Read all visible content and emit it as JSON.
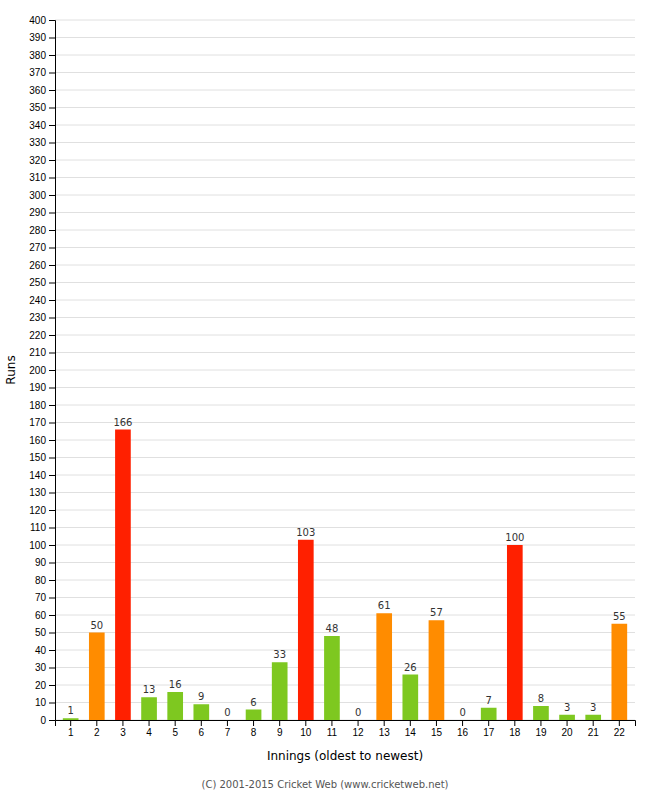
{
  "chart_data": {
    "type": "bar",
    "categories": [
      "1",
      "2",
      "3",
      "4",
      "5",
      "6",
      "7",
      "8",
      "9",
      "10",
      "11",
      "12",
      "13",
      "14",
      "15",
      "16",
      "17",
      "18",
      "19",
      "20",
      "21",
      "22"
    ],
    "values": [
      1,
      50,
      166,
      13,
      16,
      9,
      0,
      6,
      33,
      103,
      48,
      0,
      61,
      26,
      57,
      0,
      7,
      100,
      8,
      3,
      3,
      55
    ],
    "colors": [
      "#7ec820",
      "#ff8c00",
      "#ff2000",
      "#7ec820",
      "#7ec820",
      "#7ec820",
      "#7ec820",
      "#7ec820",
      "#7ec820",
      "#ff2000",
      "#7ec820",
      "#7ec820",
      "#ff8c00",
      "#7ec820",
      "#ff8c00",
      "#7ec820",
      "#7ec820",
      "#ff2000",
      "#7ec820",
      "#7ec820",
      "#7ec820",
      "#ff8c00"
    ],
    "xlabel": "Innings (oldest to newest)",
    "ylabel": "Runs",
    "ylim": [
      0,
      400
    ],
    "yticks": [
      0,
      10,
      20,
      30,
      40,
      50,
      60,
      70,
      80,
      90,
      100,
      110,
      120,
      130,
      140,
      150,
      160,
      170,
      180,
      190,
      200,
      210,
      220,
      230,
      240,
      250,
      260,
      270,
      280,
      290,
      300,
      310,
      320,
      330,
      340,
      350,
      360,
      370,
      380,
      390,
      400
    ],
    "grid": true,
    "data_labels": true,
    "annotations": [
      "(C) 2001-2015 Cricket Web (www.cricketweb.net)"
    ]
  }
}
